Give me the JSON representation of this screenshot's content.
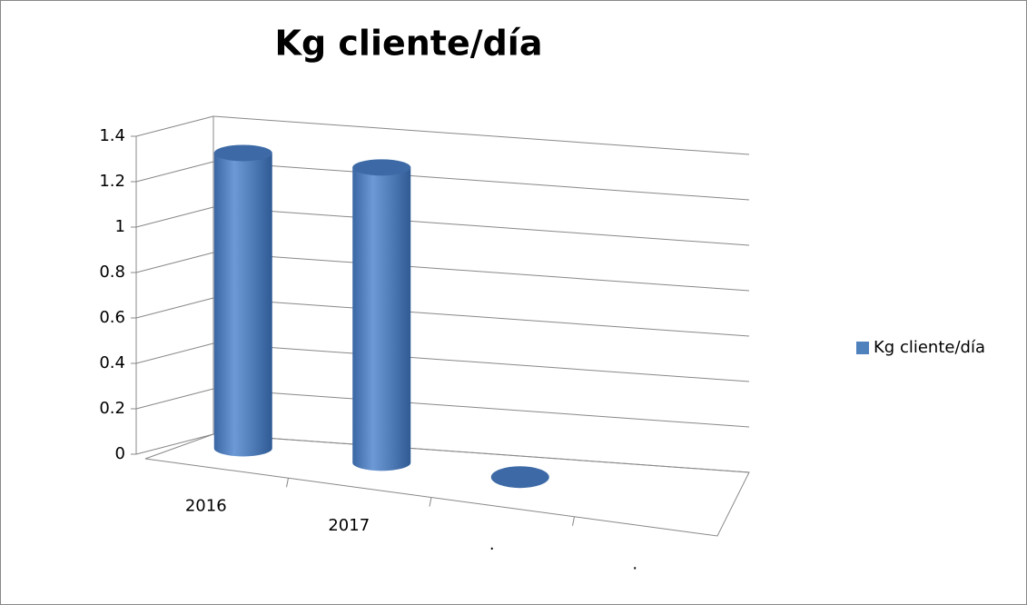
{
  "chart_data": {
    "type": "bar3d_cylinder",
    "title": "Kg cliente/día",
    "categories": [
      "2016",
      "2017",
      ".",
      "."
    ],
    "series": [
      {
        "name": "Kg cliente/día",
        "color": "#4f81bd",
        "values": [
          1.3,
          1.3,
          0,
          null
        ]
      }
    ],
    "ylim": [
      0,
      1.4
    ],
    "yticks": [
      0,
      0.2,
      0.4,
      0.6,
      0.8,
      1,
      1.2,
      1.4
    ],
    "grid": true,
    "legend": "right"
  }
}
